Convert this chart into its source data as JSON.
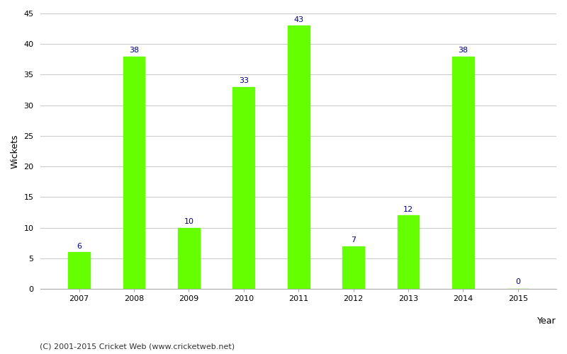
{
  "years": [
    "2007",
    "2008",
    "2009",
    "2010",
    "2011",
    "2012",
    "2013",
    "2014",
    "2015"
  ],
  "values": [
    6,
    38,
    10,
    33,
    43,
    7,
    12,
    38,
    0
  ],
  "bar_color": "#66ff00",
  "bar_edge_color": "#66ff00",
  "label_color": "#000080",
  "ylabel": "Wickets",
  "xlabel_right": "Year",
  "ylim": [
    0,
    45
  ],
  "yticks": [
    0,
    5,
    10,
    15,
    20,
    25,
    30,
    35,
    40,
    45
  ],
  "grid_color": "#cccccc",
  "bg_color": "#ffffff",
  "footnote": "(C) 2001-2015 Cricket Web (www.cricketweb.net)",
  "bar_width": 0.4,
  "label_fontsize": 8,
  "axis_label_fontsize": 9,
  "tick_fontsize": 8,
  "footnote_fontsize": 8
}
